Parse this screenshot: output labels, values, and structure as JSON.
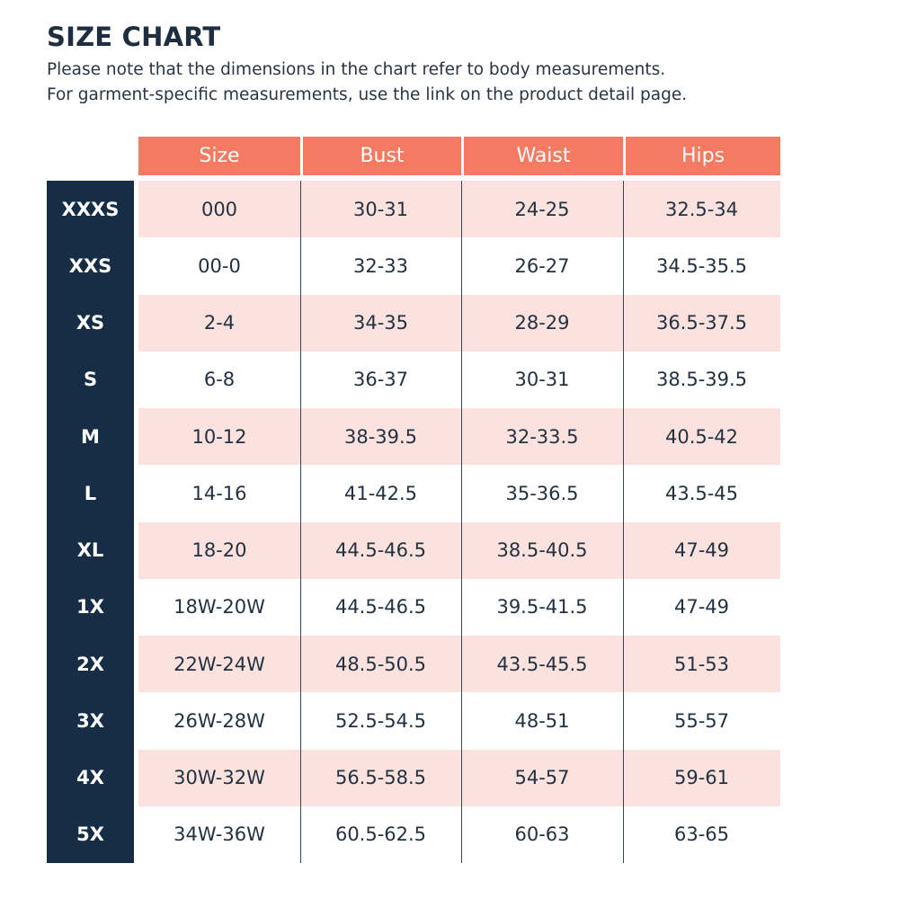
{
  "title": "SIZE CHART",
  "subtitle_line1": "Please note that the dimensions in the chart refer to body measurements.",
  "subtitle_line2": "For garment-specific measurements, use the link on the product detail page.",
  "columns": [
    "Size",
    "Bust",
    "Waist",
    "Hips"
  ],
  "colors": {
    "header": "#f47a62",
    "sidebar": "#172c45",
    "shaded_row": "#fbe2df"
  },
  "rows": [
    {
      "label": "XXXS",
      "size": "000",
      "bust": "30-31",
      "waist": "24-25",
      "hips": "32.5-34"
    },
    {
      "label": "XXS",
      "size": "00-0",
      "bust": "32-33",
      "waist": "26-27",
      "hips": "34.5-35.5"
    },
    {
      "label": "XS",
      "size": "2-4",
      "bust": "34-35",
      "waist": "28-29",
      "hips": "36.5-37.5"
    },
    {
      "label": "S",
      "size": "6-8",
      "bust": "36-37",
      "waist": "30-31",
      "hips": "38.5-39.5"
    },
    {
      "label": "M",
      "size": "10-12",
      "bust": "38-39.5",
      "waist": "32-33.5",
      "hips": "40.5-42"
    },
    {
      "label": "L",
      "size": "14-16",
      "bust": "41-42.5",
      "waist": "35-36.5",
      "hips": "43.5-45"
    },
    {
      "label": "XL",
      "size": "18-20",
      "bust": "44.5-46.5",
      "waist": "38.5-40.5",
      "hips": "47-49"
    },
    {
      "label": "1X",
      "size": "18W-20W",
      "bust": "44.5-46.5",
      "waist": "39.5-41.5",
      "hips": "47-49"
    },
    {
      "label": "2X",
      "size": "22W-24W",
      "bust": "48.5-50.5",
      "waist": "43.5-45.5",
      "hips": "51-53"
    },
    {
      "label": "3X",
      "size": "26W-28W",
      "bust": "52.5-54.5",
      "waist": "48-51",
      "hips": "55-57"
    },
    {
      "label": "4X",
      "size": "30W-32W",
      "bust": "56.5-58.5",
      "waist": "54-57",
      "hips": "59-61"
    },
    {
      "label": "5X",
      "size": "34W-36W",
      "bust": "60.5-62.5",
      "waist": "60-63",
      "hips": "63-65"
    }
  ]
}
